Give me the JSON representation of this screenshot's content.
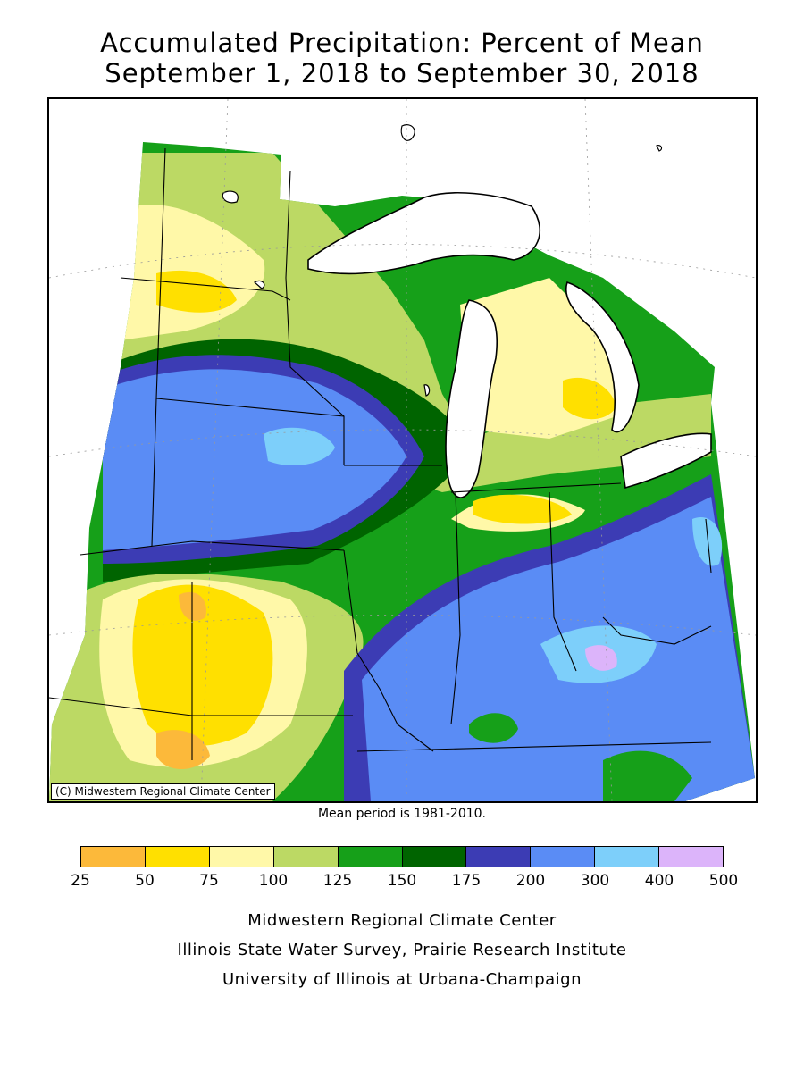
{
  "title": {
    "line1": "Accumulated Precipitation: Percent of Mean",
    "line2": "September 1, 2018 to September 30, 2018"
  },
  "map": {
    "copyright": "(C) Midwestern Regional Climate Center",
    "mean_period": "Mean period is 1981-2010."
  },
  "legend": {
    "ticks": [
      "25",
      "50",
      "75",
      "100",
      "125",
      "150",
      "175",
      "200",
      "300",
      "400",
      "500"
    ],
    "colors": [
      "#fcb93a",
      "#ffe000",
      "#fff8a8",
      "#bcd964",
      "#16a019",
      "#006400",
      "#3c3cb4",
      "#5a8cf5",
      "#7dcffa",
      "#dcb4fa"
    ]
  },
  "credits": {
    "line1": "Midwestern Regional Climate Center",
    "line2": "Illinois State Water Survey, Prairie Research Institute",
    "line3": "University of Illinois at Urbana-Champaign"
  }
}
